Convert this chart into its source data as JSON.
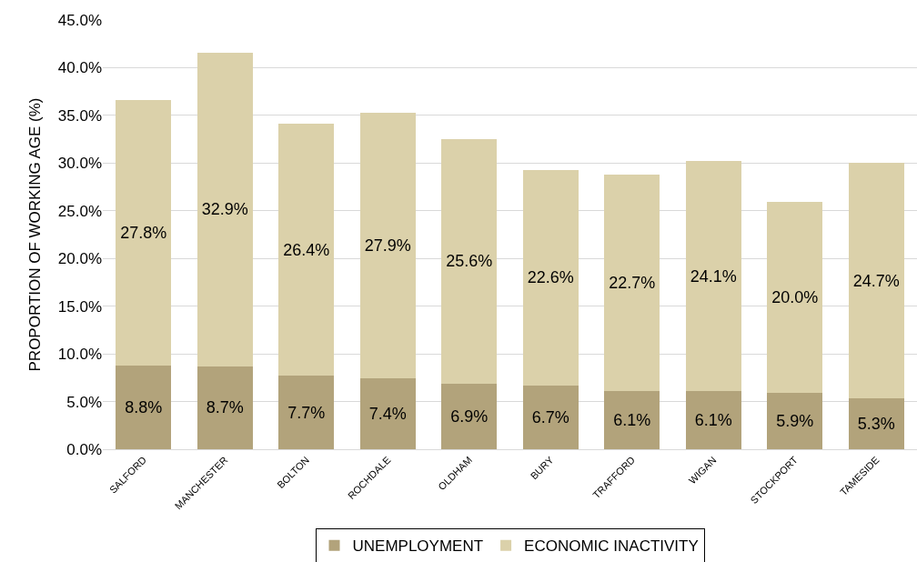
{
  "chart_data": {
    "type": "bar",
    "stacked": true,
    "categories": [
      "SALFORD",
      "MANCHESTER",
      "BOLTON",
      "ROCHDALE",
      "OLDHAM",
      "BURY",
      "TRAFFORD",
      "WIGAN",
      "STOCKPORT",
      "TAMESIDE"
    ],
    "series": [
      {
        "name": "UNEMPLOYMENT",
        "color": "#b2a37b",
        "values": [
          8.8,
          8.7,
          7.7,
          7.4,
          6.9,
          6.7,
          6.1,
          6.1,
          5.9,
          5.3
        ],
        "value_labels": [
          "8.8%",
          "8.7%",
          "7.7%",
          "7.4%",
          "6.9%",
          "6.7%",
          "6.1%",
          "6.1%",
          "5.9%",
          "5.3%"
        ]
      },
      {
        "name": "ECONOMIC INACTIVITY",
        "color": "#dbd1aa",
        "values": [
          27.8,
          32.9,
          26.4,
          27.9,
          25.6,
          22.6,
          22.7,
          24.1,
          20.0,
          24.7
        ],
        "value_labels": [
          "27.8%",
          "32.9%",
          "26.4%",
          "27.9%",
          "25.6%",
          "22.6%",
          "22.7%",
          "24.1%",
          "20.0%",
          "24.7%"
        ]
      }
    ],
    "ylabel": "PROPORTION OF WORKING AGE (%)",
    "ylim": [
      0,
      45
    ],
    "yticks": [
      {
        "value": 0,
        "label": "0.0%"
      },
      {
        "value": 5,
        "label": "5.0%"
      },
      {
        "value": 10,
        "label": "10.0%"
      },
      {
        "value": 15,
        "label": "15.0%"
      },
      {
        "value": 20,
        "label": "20.0%"
      },
      {
        "value": 25,
        "label": "25.0%"
      },
      {
        "value": 30,
        "label": "30.0%"
      },
      {
        "value": 35,
        "label": "35.0%"
      },
      {
        "value": 40,
        "label": "40.0%"
      },
      {
        "value": 45,
        "label": "45.0%"
      }
    ],
    "grid": "y",
    "legend": "bottom"
  }
}
